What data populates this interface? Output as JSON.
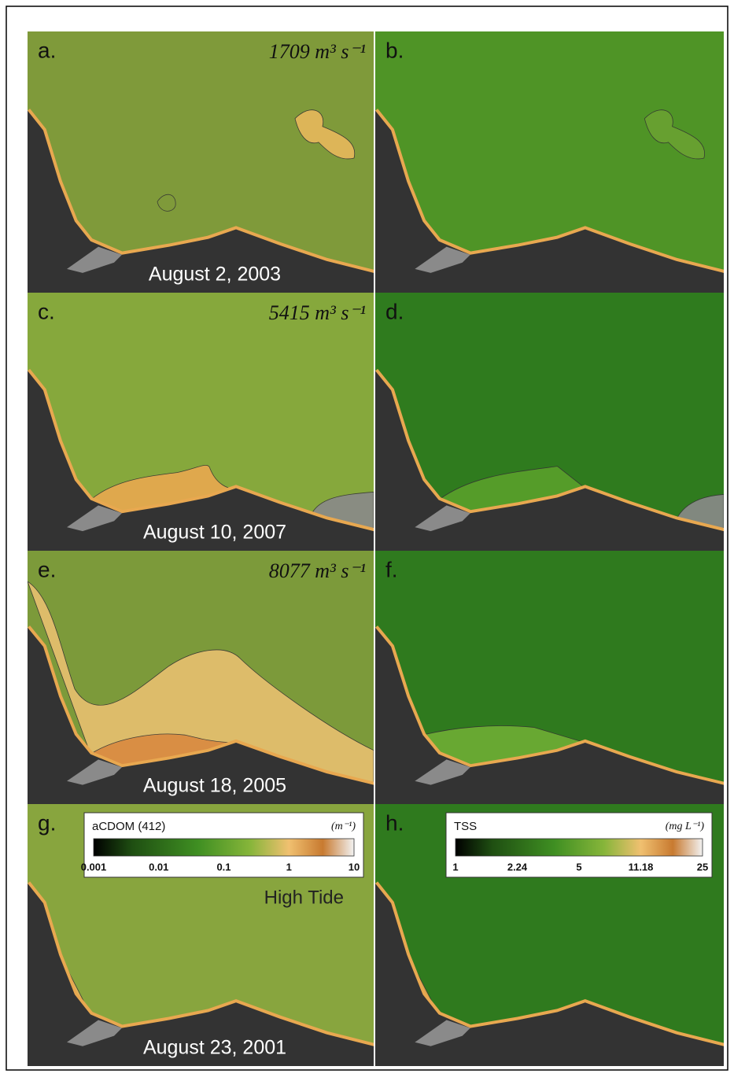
{
  "panels": [
    {
      "label": "a.",
      "discharge": "1709 m³ s⁻¹",
      "date": "August 2,  2003"
    },
    {
      "label": "b."
    },
    {
      "label": "c.",
      "discharge": "5415 m³ s⁻¹",
      "date": "August 10, 2007"
    },
    {
      "label": "d."
    },
    {
      "label": "e.",
      "discharge": "8077 m³ s⁻¹",
      "date": "August 18, 2005"
    },
    {
      "label": "f."
    },
    {
      "label": "g.",
      "date": "August 23, 2001",
      "note": "High Tide",
      "colorbar": {
        "title": "aCDOM (412)",
        "units": "(m⁻¹)",
        "ticks": [
          0.001,
          0.01,
          0.1,
          1,
          10
        ]
      }
    },
    {
      "label": "h.",
      "colorbar": {
        "title": "TSS",
        "units": "(mg L⁻¹)",
        "ticks": [
          1,
          2.24,
          5,
          11.18,
          25
        ]
      }
    }
  ]
}
